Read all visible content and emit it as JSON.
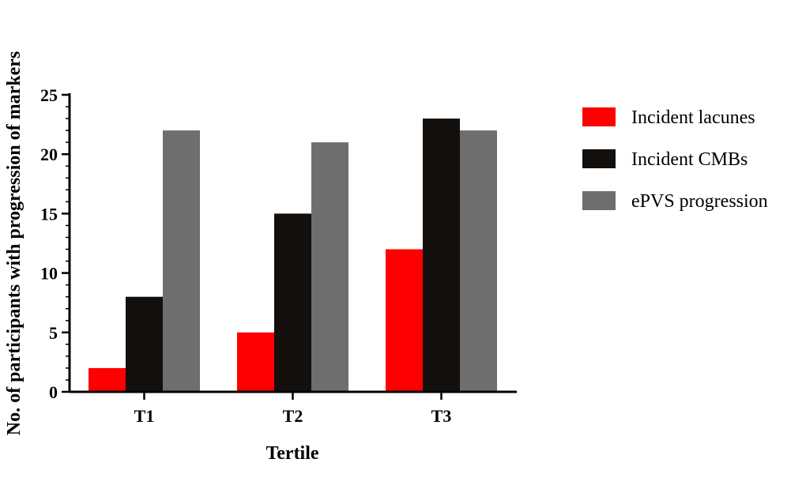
{
  "chart_data": {
    "type": "bar",
    "title": "",
    "xlabel": "Tertile",
    "ylabel": "No. of participants with progression of markers",
    "categories": [
      "T1",
      "T2",
      "T3"
    ],
    "ylim": [
      0,
      25
    ],
    "yticks": [
      "0",
      "5",
      "10",
      "15",
      "20",
      "25"
    ],
    "legend_position": "right",
    "grid": false,
    "series": [
      {
        "name": "Incident lacunes",
        "color": "#ff0000",
        "values": [
          2,
          5,
          12
        ]
      },
      {
        "name": "Incident CMBs",
        "color": "#120f0c",
        "values": [
          8,
          15,
          23
        ]
      },
      {
        "name": "ePVS progression",
        "color": "#6e6e6e",
        "values": [
          22,
          21,
          22
        ]
      }
    ]
  }
}
